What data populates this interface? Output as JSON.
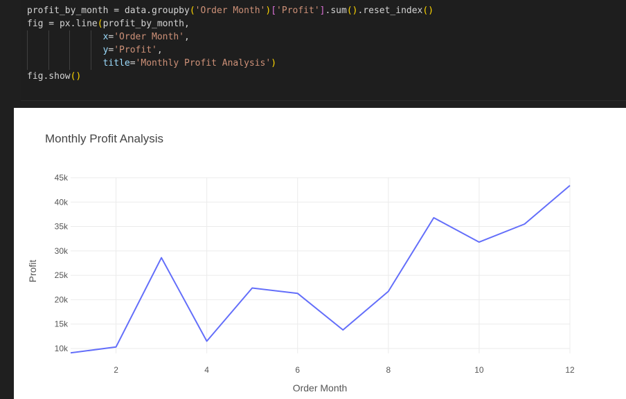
{
  "code_cell": {
    "lines": [
      [
        {
          "t": "profit_by_month = data.groupby",
          "c": "plain"
        },
        {
          "t": "(",
          "c": "paren"
        },
        {
          "t": "'Order Month'",
          "c": "str"
        },
        {
          "t": ")",
          "c": "paren"
        },
        {
          "t": "[",
          "c": "bracket"
        },
        {
          "t": "'Profit'",
          "c": "str"
        },
        {
          "t": "]",
          "c": "bracket"
        },
        {
          "t": ".sum",
          "c": "plain"
        },
        {
          "t": "()",
          "c": "paren"
        },
        {
          "t": ".reset_index",
          "c": "plain"
        },
        {
          "t": "()",
          "c": "paren"
        }
      ],
      [
        {
          "t": "fig = px.line",
          "c": "plain"
        },
        {
          "t": "(",
          "c": "paren"
        },
        {
          "t": "profit_by_month,",
          "c": "plain"
        }
      ],
      [
        {
          "t": "              ",
          "c": "plain"
        },
        {
          "t": "x",
          "c": "param"
        },
        {
          "t": "=",
          "c": "plain"
        },
        {
          "t": "'Order Month'",
          "c": "str"
        },
        {
          "t": ",",
          "c": "plain"
        }
      ],
      [
        {
          "t": "              ",
          "c": "plain"
        },
        {
          "t": "y",
          "c": "param"
        },
        {
          "t": "=",
          "c": "plain"
        },
        {
          "t": "'Profit'",
          "c": "str"
        },
        {
          "t": ",",
          "c": "plain"
        }
      ],
      [
        {
          "t": "              ",
          "c": "plain"
        },
        {
          "t": "title",
          "c": "param"
        },
        {
          "t": "=",
          "c": "plain"
        },
        {
          "t": "'Monthly Profit Analysis'",
          "c": "str"
        },
        {
          "t": ")",
          "c": "paren"
        }
      ],
      [
        {
          "t": "fig.show",
          "c": "plain"
        },
        {
          "t": "()",
          "c": "paren"
        }
      ]
    ]
  },
  "colors": {
    "line": "#636efa",
    "grid": "#ebebeb",
    "background": "#ffffff"
  },
  "chart_data": {
    "type": "line",
    "title": "Monthly Profit Analysis",
    "xlabel": "Order Month",
    "ylabel": "Profit",
    "xlim": [
      1,
      12
    ],
    "ylim": [
      9000,
      45000
    ],
    "xticks": [
      2,
      4,
      6,
      8,
      10,
      12
    ],
    "yticks": [
      10000,
      15000,
      20000,
      25000,
      30000,
      35000,
      40000,
      45000
    ],
    "ytick_labels": [
      "10k",
      "15k",
      "20k",
      "25k",
      "30k",
      "35k",
      "40k",
      "45k"
    ],
    "grid": true,
    "series": [
      {
        "name": "Profit",
        "x": [
          1,
          2,
          3,
          4,
          5,
          6,
          7,
          8,
          9,
          10,
          11,
          12
        ],
        "y": [
          9100,
          10300,
          28600,
          11500,
          22400,
          21300,
          13800,
          21700,
          36800,
          31800,
          35500,
          43400
        ]
      }
    ]
  }
}
